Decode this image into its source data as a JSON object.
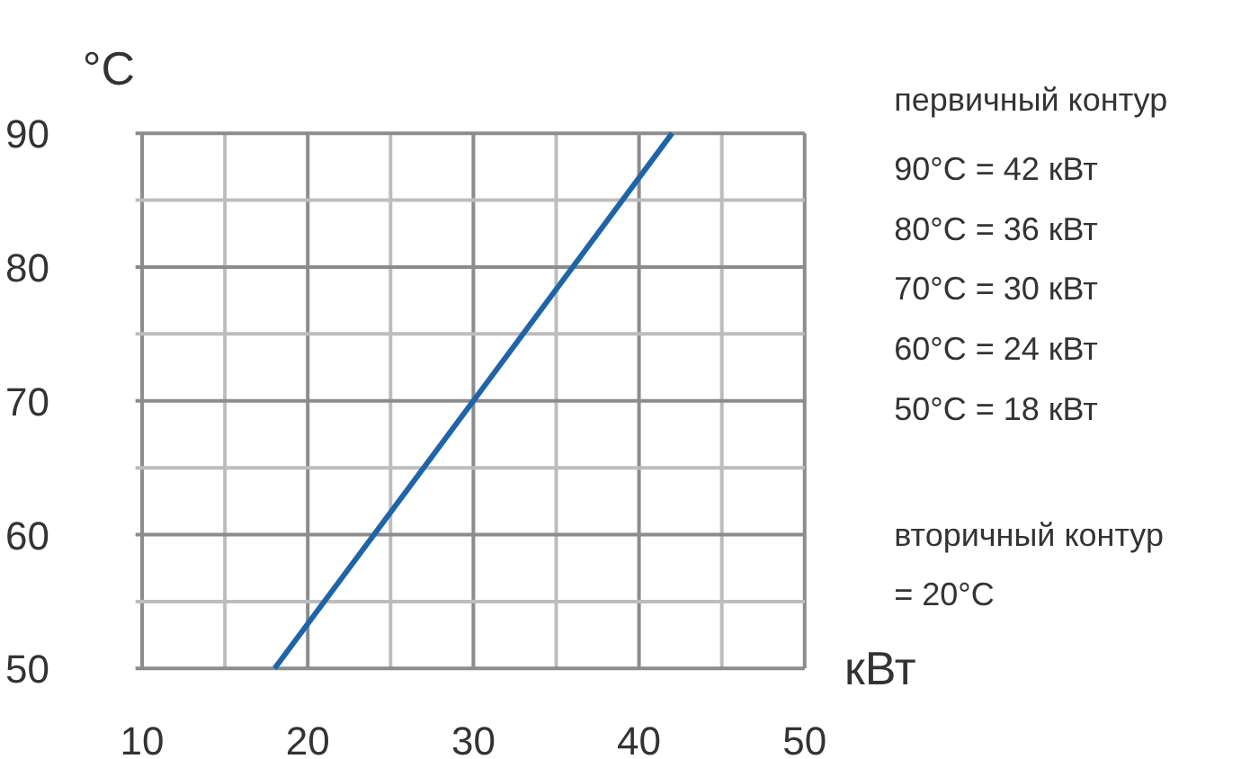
{
  "chart_data": {
    "type": "line",
    "ylabel": "°C",
    "xlabel": "кВт",
    "x": [
      18,
      42
    ],
    "series": [
      {
        "color": "#1f64a8",
        "values": [
          50,
          90
        ]
      }
    ],
    "xlim": [
      10,
      50
    ],
    "ylim": [
      50,
      90
    ],
    "xticks": [
      10,
      {
        "value": 15,
        "label": null
      },
      20,
      {
        "value": 25,
        "label": null
      },
      30,
      {
        "value": 35,
        "label": null
      },
      40,
      {
        "value": 45,
        "label": null
      },
      50
    ],
    "yticks": [
      50,
      {
        "value": 55,
        "label": null
      },
      60,
      {
        "value": 65,
        "label": null
      },
      70,
      {
        "value": 75,
        "label": null
      },
      80,
      {
        "value": 85,
        "label": null
      },
      90
    ],
    "grid": true,
    "marker": "none",
    "line_style": "solid",
    "annotations": [
      "первичный контур",
      "90°C = 42 кВт",
      "80°C = 36 кВт",
      "70°C = 30 кВт",
      "60°C = 24 кВт",
      "50°C = 18 кВт",
      "вторичный контур",
      "= 20°C"
    ]
  }
}
